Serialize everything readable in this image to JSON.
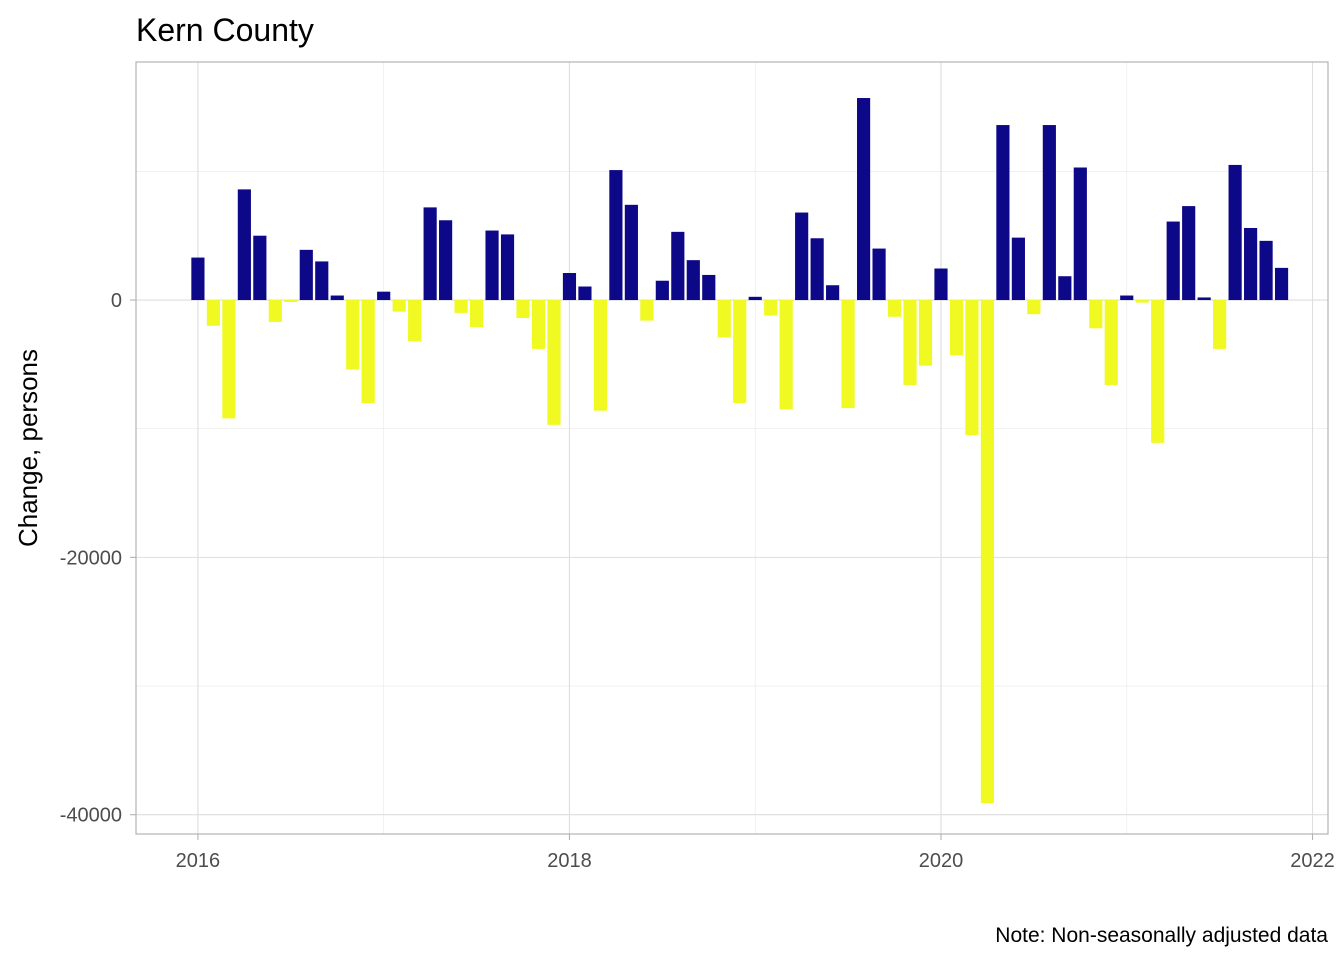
{
  "chart_data": {
    "type": "bar",
    "title": "Kern County",
    "xlabel": "",
    "ylabel": "Change, persons",
    "caption": "Note: Non-seasonally adjusted data",
    "x_ticks": [
      "2016",
      "2018",
      "2020",
      "2022"
    ],
    "y_ticks": [
      "-40000",
      "-20000",
      "0"
    ],
    "ylim": [
      -41500,
      18500
    ],
    "xlim": [
      "2015-09",
      "2022-02"
    ],
    "grid": true,
    "legend": "none",
    "colors": {
      "positive": "#0d0887",
      "negative": "#f0f921"
    },
    "series": [
      {
        "x": [
          "2016-01",
          "2016-02",
          "2016-03",
          "2016-04",
          "2016-05",
          "2016-06",
          "2016-07",
          "2016-08",
          "2016-09",
          "2016-10",
          "2016-11",
          "2016-12",
          "2017-01",
          "2017-02",
          "2017-03",
          "2017-04",
          "2017-05",
          "2017-06",
          "2017-07",
          "2017-08",
          "2017-09",
          "2017-10",
          "2017-11",
          "2017-12",
          "2018-01",
          "2018-02",
          "2018-03",
          "2018-04",
          "2018-05",
          "2018-06",
          "2018-07",
          "2018-08",
          "2018-09",
          "2018-10",
          "2018-11",
          "2018-12",
          "2019-01",
          "2019-02",
          "2019-03",
          "2019-04",
          "2019-05",
          "2019-06",
          "2019-07",
          "2019-08",
          "2019-09",
          "2019-10",
          "2019-11",
          "2019-12",
          "2020-01",
          "2020-02",
          "2020-03",
          "2020-04",
          "2020-05",
          "2020-06",
          "2020-07",
          "2020-08",
          "2020-09",
          "2020-10",
          "2020-11",
          "2020-12",
          "2021-01",
          "2021-02",
          "2021-03",
          "2021-04",
          "2021-05",
          "2021-06",
          "2021-07",
          "2021-08",
          "2021-09",
          "2021-10",
          "2021-11"
        ],
        "values": [
          3300,
          -2000,
          -9200,
          8600,
          5000,
          -1700,
          -150,
          3900,
          3000,
          350,
          -5400,
          -8000,
          650,
          -900,
          -3200,
          7200,
          6200,
          -1000,
          -2100,
          5400,
          5100,
          -1400,
          -3800,
          -9700,
          2100,
          1050,
          -8600,
          10100,
          7400,
          -1600,
          1500,
          5300,
          3100,
          1950,
          -2900,
          -8000,
          250,
          -1200,
          -8500,
          6800,
          4800,
          1150,
          -8400,
          15700,
          4000,
          -1300,
          -6600,
          -5100,
          2450,
          -4300,
          -10500,
          -39100,
          13600,
          4850,
          -1100,
          13600,
          1850,
          10300,
          -2200,
          -6600,
          350,
          -200,
          -11100,
          6100,
          7300,
          200,
          -3800,
          10500,
          5600,
          4600,
          2500
        ]
      }
    ]
  }
}
